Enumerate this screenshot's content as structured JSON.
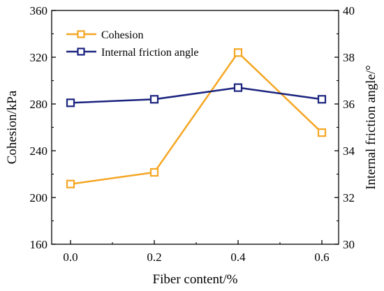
{
  "chart_data": {
    "type": "line",
    "x": [
      0.0,
      0.2,
      0.4,
      0.6
    ],
    "x_tick_labels": [
      "0.0",
      "0.2",
      "0.4",
      "0.6"
    ],
    "xlabel": "Fiber content/%",
    "ylabel_left": "Cohesion/kPa",
    "ylabel_right": "Internal friction angle/°",
    "ylim_left": [
      160,
      360
    ],
    "ylim_right": [
      30,
      40
    ],
    "y_ticks_left": [
      "160",
      "200",
      "240",
      "280",
      "320",
      "360"
    ],
    "y_ticks_right": [
      "30",
      "32",
      "34",
      "36",
      "38",
      "40"
    ],
    "grid": false,
    "legend_position": "top-left",
    "series": [
      {
        "name": "Cohesion",
        "axis": "left",
        "color": "#F5A623",
        "marker": "open-square",
        "values": [
          211.5,
          221.5,
          324.0,
          255.5
        ]
      },
      {
        "name": "Internal friction angle",
        "axis": "right",
        "color": "#1A237E",
        "marker": "open-square",
        "values": [
          36.05,
          36.2,
          36.7,
          36.2
        ]
      }
    ]
  }
}
